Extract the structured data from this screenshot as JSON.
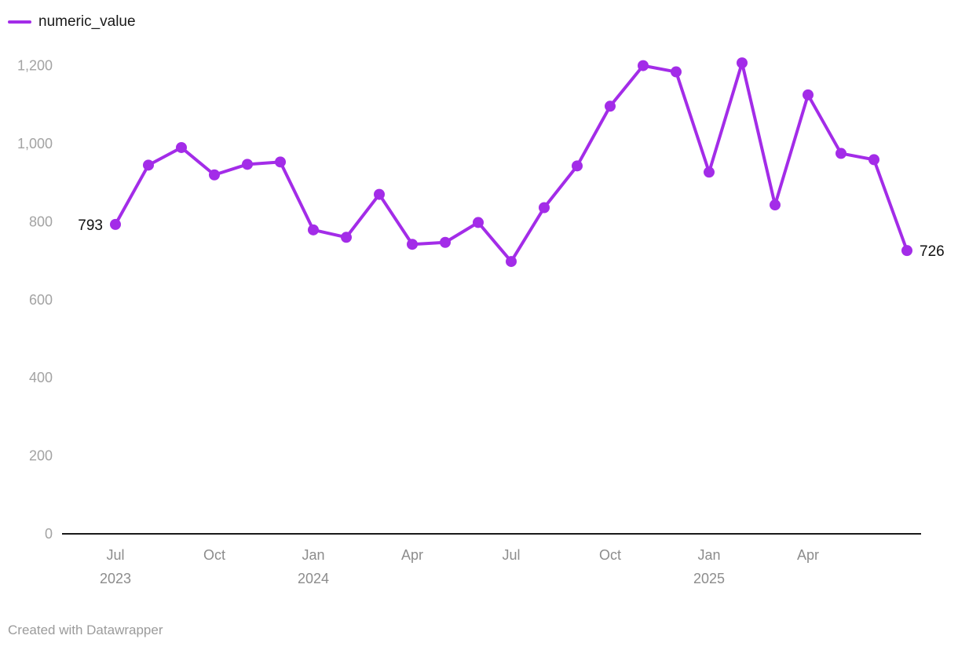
{
  "chart_data": {
    "type": "line",
    "title": "",
    "legend": {
      "label": "numeric_value",
      "position": "top-left"
    },
    "line_color": "#A32CE8",
    "grid": "off",
    "ylim": [
      0,
      1200
    ],
    "categories": [
      "Jul 2023",
      "Aug 2023",
      "Sep 2023",
      "Oct 2023",
      "Nov 2023",
      "Dec 2023",
      "Jan 2024",
      "Feb 2024",
      "Mar 2024",
      "Apr 2024",
      "May 2024",
      "Jun 2024",
      "Jul 2024",
      "Aug 2024",
      "Sep 2024",
      "Oct 2024",
      "Nov 2024",
      "Dec 2024",
      "Jan 2025",
      "Feb 2025",
      "Mar 2025",
      "Apr 2025",
      "May 2025",
      "Jun 2025",
      "Jul 2025"
    ],
    "values": [
      793,
      945,
      990,
      920,
      947,
      953,
      779,
      760,
      870,
      742,
      747,
      798,
      698,
      836,
      943,
      1096,
      1200,
      1184,
      927,
      1207,
      843,
      1125,
      975,
      959,
      726
    ],
    "y_ticks": [
      {
        "value": 0,
        "label": "0"
      },
      {
        "value": 200,
        "label": "200"
      },
      {
        "value": 400,
        "label": "400"
      },
      {
        "value": 600,
        "label": "600"
      },
      {
        "value": 800,
        "label": "800"
      },
      {
        "value": 1000,
        "label": "1,000"
      },
      {
        "value": 1200,
        "label": "1,200"
      }
    ],
    "x_ticks": [
      {
        "index": 0,
        "month": "Jul",
        "year": "2023"
      },
      {
        "index": 3,
        "month": "Oct"
      },
      {
        "index": 6,
        "month": "Jan",
        "year": "2024"
      },
      {
        "index": 9,
        "month": "Apr"
      },
      {
        "index": 12,
        "month": "Jul"
      },
      {
        "index": 15,
        "month": "Oct"
      },
      {
        "index": 18,
        "month": "Jan",
        "year": "2025"
      },
      {
        "index": 21,
        "month": "Apr"
      }
    ],
    "point_labels": [
      {
        "index": 0,
        "text": "793"
      },
      {
        "index": 24,
        "text": "726"
      }
    ]
  },
  "footer": {
    "text": "Created with Datawrapper"
  },
  "colors": {
    "accent": "#A32CE8",
    "axis_line": "#1a1a1a",
    "y_tick_text": "#a3a3a3",
    "x_tick_text": "#8c8c8c",
    "label_text": "#111111",
    "footer_text": "#9b9b9b"
  }
}
